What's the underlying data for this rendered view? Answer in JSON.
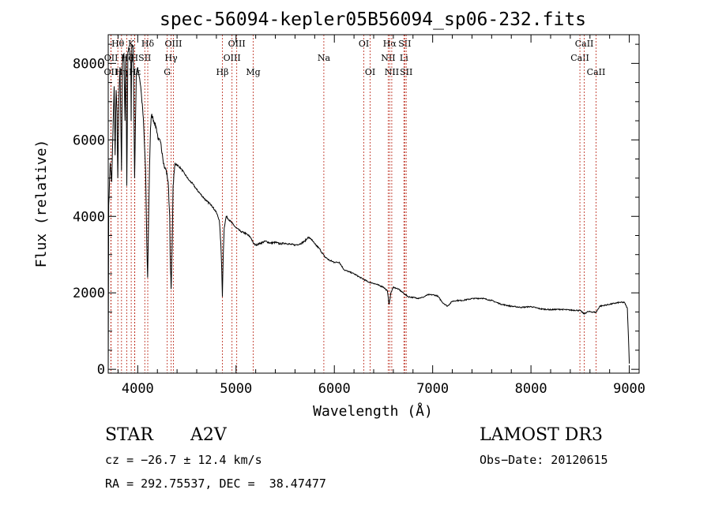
{
  "chart_data": {
    "type": "line",
    "title": "spec-56094-kepler05B56094_sp06-232.fits",
    "xlabel": "Wavelength (Å)",
    "ylabel": "Flux (relative)",
    "xlim": [
      3700,
      9100
    ],
    "ylim": [
      -100,
      8750
    ],
    "x_ticks": [
      4000,
      5000,
      6000,
      7000,
      8000,
      9000
    ],
    "y_ticks": [
      0,
      2000,
      4000,
      6000,
      8000
    ],
    "x_tick_labels": [
      "4000",
      "5000",
      "6000",
      "7000",
      "8000",
      "9000"
    ],
    "y_tick_labels": [
      "0",
      "2000",
      "4000",
      "6000",
      "8000"
    ],
    "spectrum": [
      [
        3700,
        0
      ],
      [
        3705,
        4300
      ],
      [
        3720,
        5400
      ],
      [
        3735,
        4900
      ],
      [
        3750,
        6400
      ],
      [
        3760,
        7400
      ],
      [
        3770,
        5600
      ],
      [
        3780,
        7300
      ],
      [
        3790,
        6700
      ],
      [
        3797,
        5000
      ],
      [
        3810,
        7200
      ],
      [
        3820,
        7900
      ],
      [
        3835,
        5200
      ],
      [
        3845,
        8000
      ],
      [
        3860,
        8250
      ],
      [
        3870,
        6500
      ],
      [
        3880,
        8200
      ],
      [
        3889,
        4800
      ],
      [
        3900,
        8300
      ],
      [
        3915,
        8400
      ],
      [
        3930,
        8000
      ],
      [
        3933,
        6500
      ],
      [
        3940,
        8500
      ],
      [
        3955,
        8400
      ],
      [
        3968,
        5000
      ],
      [
        3975,
        6100
      ],
      [
        3985,
        7700
      ],
      [
        4000,
        7900
      ],
      [
        4010,
        7750
      ],
      [
        4020,
        7600
      ],
      [
        4030,
        7400
      ],
      [
        4040,
        7100
      ],
      [
        4050,
        6800
      ],
      [
        4060,
        6400
      ],
      [
        4070,
        5800
      ],
      [
        4080,
        5200
      ],
      [
        4092,
        3300
      ],
      [
        4101,
        2400
      ],
      [
        4110,
        3800
      ],
      [
        4120,
        5300
      ],
      [
        4130,
        6300
      ],
      [
        4140,
        6650
      ],
      [
        4150,
        6600
      ],
      [
        4170,
        6450
      ],
      [
        4190,
        6300
      ],
      [
        4210,
        6000
      ],
      [
        4230,
        5950
      ],
      [
        4250,
        5650
      ],
      [
        4270,
        5300
      ],
      [
        4290,
        5200
      ],
      [
        4310,
        4900
      ],
      [
        4325,
        4000
      ],
      [
        4330,
        3000
      ],
      [
        4340,
        2100
      ],
      [
        4350,
        3200
      ],
      [
        4360,
        4800
      ],
      [
        4380,
        5400
      ],
      [
        4400,
        5350
      ],
      [
        4440,
        5250
      ],
      [
        4480,
        5100
      ],
      [
        4520,
        4950
      ],
      [
        4560,
        4850
      ],
      [
        4600,
        4700
      ],
      [
        4650,
        4550
      ],
      [
        4700,
        4400
      ],
      [
        4750,
        4300
      ],
      [
        4800,
        4100
      ],
      [
        4830,
        3900
      ],
      [
        4845,
        3300
      ],
      [
        4855,
        2600
      ],
      [
        4861,
        1900
      ],
      [
        4870,
        3000
      ],
      [
        4880,
        3700
      ],
      [
        4900,
        4000
      ],
      [
        4950,
        3850
      ],
      [
        5000,
        3700
      ],
      [
        5050,
        3600
      ],
      [
        5100,
        3550
      ],
      [
        5150,
        3450
      ],
      [
        5175,
        3300
      ],
      [
        5200,
        3250
      ],
      [
        5250,
        3300
      ],
      [
        5300,
        3350
      ],
      [
        5350,
        3300
      ],
      [
        5400,
        3320
      ],
      [
        5450,
        3280
      ],
      [
        5500,
        3300
      ],
      [
        5550,
        3270
      ],
      [
        5600,
        3250
      ],
      [
        5650,
        3280
      ],
      [
        5700,
        3350
      ],
      [
        5730,
        3450
      ],
      [
        5760,
        3420
      ],
      [
        5800,
        3280
      ],
      [
        5850,
        3150
      ],
      [
        5900,
        2950
      ],
      [
        5950,
        2850
      ],
      [
        6000,
        2800
      ],
      [
        6050,
        2800
      ],
      [
        6100,
        2600
      ],
      [
        6150,
        2550
      ],
      [
        6200,
        2500
      ],
      [
        6250,
        2420
      ],
      [
        6300,
        2350
      ],
      [
        6350,
        2280
      ],
      [
        6400,
        2250
      ],
      [
        6450,
        2200
      ],
      [
        6500,
        2150
      ],
      [
        6540,
        2050
      ],
      [
        6556,
        1700
      ],
      [
        6563,
        1800
      ],
      [
        6575,
        2000
      ],
      [
        6600,
        2150
      ],
      [
        6650,
        2100
      ],
      [
        6700,
        2000
      ],
      [
        6750,
        1900
      ],
      [
        6800,
        1880
      ],
      [
        6850,
        1860
      ],
      [
        6900,
        1880
      ],
      [
        6950,
        1950
      ],
      [
        7000,
        1950
      ],
      [
        7050,
        1920
      ],
      [
        7100,
        1750
      ],
      [
        7150,
        1650
      ],
      [
        7200,
        1780
      ],
      [
        7250,
        1800
      ],
      [
        7300,
        1800
      ],
      [
        7400,
        1850
      ],
      [
        7500,
        1860
      ],
      [
        7600,
        1800
      ],
      [
        7700,
        1700
      ],
      [
        7800,
        1650
      ],
      [
        7900,
        1620
      ],
      [
        8000,
        1640
      ],
      [
        8100,
        1580
      ],
      [
        8200,
        1560
      ],
      [
        8300,
        1570
      ],
      [
        8400,
        1550
      ],
      [
        8500,
        1540
      ],
      [
        8540,
        1450
      ],
      [
        8580,
        1510
      ],
      [
        8662,
        1490
      ],
      [
        8700,
        1650
      ],
      [
        8800,
        1700
      ],
      [
        8900,
        1750
      ],
      [
        8950,
        1750
      ],
      [
        8980,
        1600
      ],
      [
        8995,
        600
      ],
      [
        9000,
        150
      ]
    ],
    "emission_lines": [
      {
        "name": "OII",
        "wavelength": 3727,
        "row": 2
      },
      {
        "name": "OII",
        "wavelength": 3729,
        "row": 1
      },
      {
        "name": "Hθ",
        "wavelength": 3798,
        "row": 0
      },
      {
        "name": "Hη",
        "wavelength": 3835,
        "row": 2
      },
      {
        "name": "Hζ",
        "wavelength": 3889,
        "row": 1
      },
      {
        "name": "K",
        "wavelength": 3934,
        "row": 0
      },
      {
        "name": "H",
        "wavelength": 3968,
        "row": 1
      },
      {
        "name": "Hε",
        "wavelength": 3970,
        "row": 2
      },
      {
        "name": "SII",
        "wavelength": 4072,
        "row": 1
      },
      {
        "name": "Hδ",
        "wavelength": 4102,
        "row": 0
      },
      {
        "name": "G",
        "wavelength": 4300,
        "row": 2
      },
      {
        "name": "Hγ",
        "wavelength": 4340,
        "row": 1
      },
      {
        "name": "OIII",
        "wavelength": 4363,
        "row": 0
      },
      {
        "name": "Hβ",
        "wavelength": 4861,
        "row": 2
      },
      {
        "name": "OIII",
        "wavelength": 4959,
        "row": 1
      },
      {
        "name": "OIII",
        "wavelength": 5007,
        "row": 0
      },
      {
        "name": "Mg",
        "wavelength": 5175,
        "row": 2
      },
      {
        "name": "Na",
        "wavelength": 5893,
        "row": 1
      },
      {
        "name": "OI",
        "wavelength": 6300,
        "row": 0
      },
      {
        "name": "OI",
        "wavelength": 6364,
        "row": 2
      },
      {
        "name": "NII",
        "wavelength": 6548,
        "row": 1
      },
      {
        "name": "Hα",
        "wavelength": 6563,
        "row": 0
      },
      {
        "name": "NII",
        "wavelength": 6584,
        "row": 2
      },
      {
        "name": "Li",
        "wavelength": 6708,
        "row": 1
      },
      {
        "name": "SII",
        "wavelength": 6716,
        "row": 0
      },
      {
        "name": "SII",
        "wavelength": 6731,
        "row": 2
      },
      {
        "name": "CaII",
        "wavelength": 8498,
        "row": 1
      },
      {
        "name": "CaII",
        "wavelength": 8542,
        "row": 0
      },
      {
        "name": "CaII",
        "wavelength": 8662,
        "row": 2
      }
    ]
  },
  "info": {
    "class": "STAR",
    "subclass": "A2V",
    "survey": "LAMOST DR3",
    "cz": "cz = −26.7 ± 12.4 km/s",
    "obs_date": "Obs−Date: 20120615",
    "radec": "RA = 292.75537, DEC =  38.47477"
  }
}
